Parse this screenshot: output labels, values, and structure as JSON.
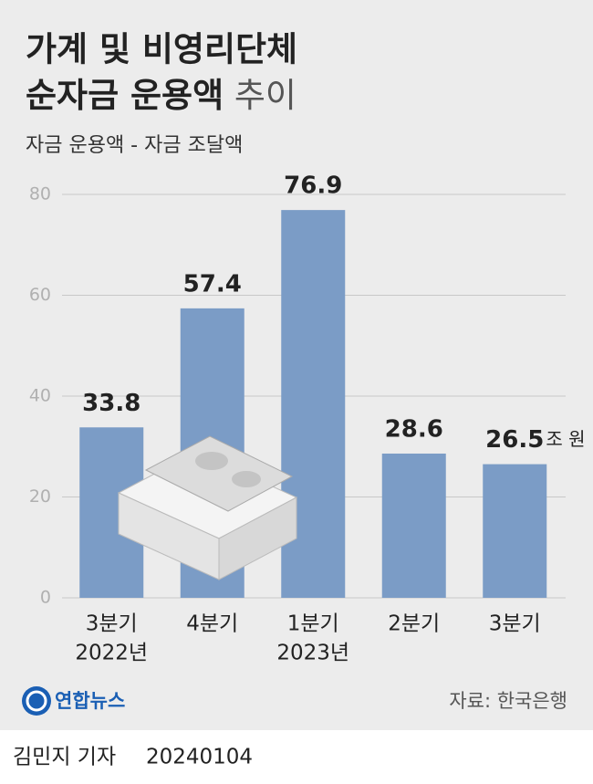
{
  "chart_data": {
    "type": "bar",
    "title_bold_line1": "가계 및 비영리단체",
    "title_bold_line2": "순자금 운용액",
    "title_light": "추이",
    "subtitle": "자금 운용액 - 자금 조달액",
    "categories": [
      "3분기",
      "4분기",
      "1분기",
      "2분기",
      "3분기"
    ],
    "year_labels": [
      "2022년",
      null,
      "2023년",
      null,
      null
    ],
    "values": [
      33.8,
      57.4,
      76.9,
      28.6,
      26.5
    ],
    "unit": "조 원",
    "color": "#7b9cc6",
    "ylim": [
      0,
      80
    ],
    "yticks": [
      0,
      20,
      40,
      60,
      80
    ],
    "grid": true
  },
  "footer": {
    "logo": "연합뉴스",
    "source": "자료: 한국은행",
    "byline": "김민지 기자",
    "date": "20240104"
  }
}
